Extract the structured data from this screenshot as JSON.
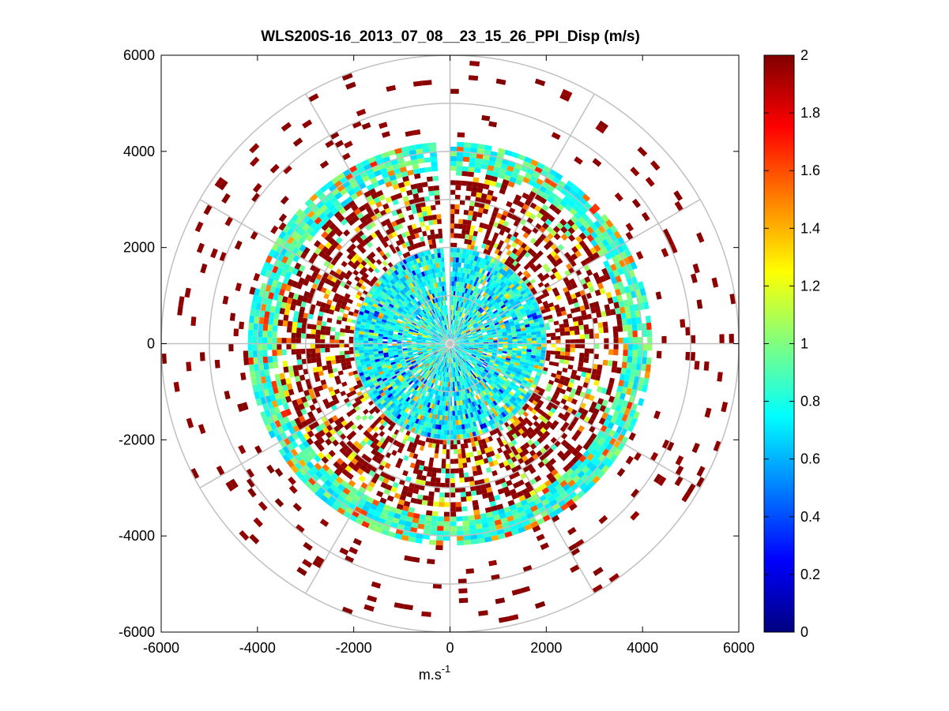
{
  "chart_data": {
    "type": "heatmap",
    "subtype": "polar-ppi",
    "title": "WLS200S-16_2013_07_08__23_15_26_PPI_Disp (m/s)",
    "xlabel": "m.s",
    "xlabel_superscript": "-1",
    "ylabel": "",
    "xlim": [
      -6000,
      6000
    ],
    "ylim": [
      -6000,
      6000
    ],
    "xticks": [
      -6000,
      -4000,
      -2000,
      0,
      2000,
      4000,
      6000
    ],
    "yticks": [
      6000,
      4000,
      2000,
      0,
      -2000,
      -4000,
      -6000
    ],
    "xtick_labels": [
      "-6000",
      "-4000",
      "-2000",
      "0",
      "2000",
      "4000",
      "6000"
    ],
    "ytick_labels": [
      "6000",
      "4000",
      "2000",
      "0",
      "-2000",
      "-4000",
      "-6000"
    ],
    "polar_grid": {
      "ring_radii": [
        1000,
        2000,
        3000,
        4000,
        5000,
        6000
      ],
      "spoke_angles_deg": [
        0,
        30,
        60,
        90,
        120,
        150,
        180,
        210,
        240,
        270,
        300,
        330
      ]
    },
    "colorbar": {
      "colormap": "jet",
      "range": [
        0,
        2
      ],
      "ticks": [
        0,
        0.2,
        0.4,
        0.6,
        0.8,
        1,
        1.2,
        1.4,
        1.6,
        1.8,
        2
      ],
      "tick_labels": [
        "0",
        "0.2",
        "0.4",
        "0.6",
        "0.8",
        "1",
        "1.2",
        "1.4",
        "1.6",
        "1.8",
        "2"
      ]
    },
    "field": {
      "units": "m/s",
      "range_gate_m": 100,
      "max_range_m": 6000,
      "missing_sector_deg": [
        -4,
        0
      ],
      "radial_profile": [
        {
          "r_min": 0,
          "r_max": 2000,
          "typical_value": 0.75,
          "coverage": "dense"
        },
        {
          "r_min": 2000,
          "r_max": 3600,
          "typical_value": 1.95,
          "coverage": "patchy"
        },
        {
          "r_min": 3600,
          "r_max": 4200,
          "typical_value": 0.85,
          "coverage": "ring"
        },
        {
          "r_min": 4200,
          "r_max": 6000,
          "typical_value": 2.0,
          "coverage": "sparse"
        }
      ]
    }
  }
}
